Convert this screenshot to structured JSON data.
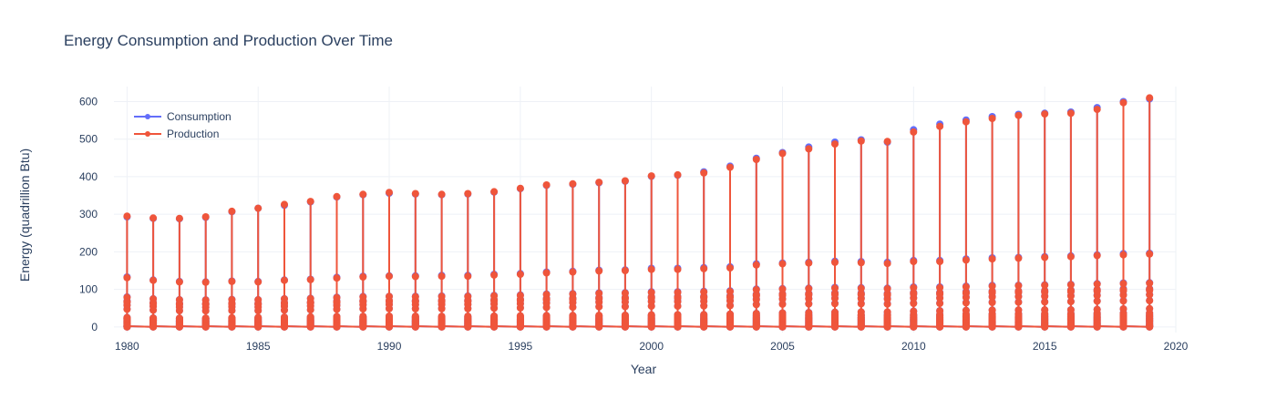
{
  "chart_data": {
    "type": "line",
    "title": "Energy Consumption and Production Over Time",
    "xlabel": "Year",
    "ylabel": "Energy (quadrillion Btu)",
    "xlim": [
      1979.5,
      2020
    ],
    "ylim": [
      -15,
      640
    ],
    "x_ticks": [
      1980,
      1985,
      1990,
      1995,
      2000,
      2005,
      2010,
      2015,
      2020
    ],
    "y_ticks": [
      0,
      100,
      200,
      300,
      400,
      500,
      600
    ],
    "mode": "lines+markers",
    "legend_position": "top-left",
    "grid": true,
    "years": [
      1980,
      1981,
      1982,
      1983,
      1984,
      1985,
      1986,
      1987,
      1988,
      1989,
      1990,
      1991,
      1992,
      1993,
      1994,
      1995,
      1996,
      1997,
      1998,
      1999,
      2000,
      2001,
      2002,
      2003,
      2004,
      2005,
      2006,
      2007,
      2008,
      2009,
      2010,
      2011,
      2012,
      2013,
      2014,
      2015,
      2016,
      2017,
      2018,
      2019
    ],
    "series": [
      {
        "name": "Consumption",
        "color": "#636efa",
        "annual_max": [
          293,
          289,
          288,
          292,
          307,
          316,
          324,
          333,
          346,
          352,
          356,
          354,
          352,
          354,
          359,
          368,
          377,
          380,
          384,
          388,
          401,
          404,
          413,
          428,
          449,
          464,
          479,
          492,
          498,
          492,
          525,
          540,
          551,
          560,
          566,
          569,
          572,
          584,
          600,
          607
        ],
        "annual_secondary": [
          133,
          125,
          121,
          120,
          122,
          121,
          125,
          127,
          132,
          135,
          136,
          136,
          137,
          137,
          140,
          142,
          146,
          148,
          151,
          152,
          156,
          156,
          158,
          160,
          168,
          170,
          172,
          175,
          174,
          172,
          177,
          177,
          181,
          184,
          185,
          187,
          189,
          192,
          195,
          196
        ]
      },
      {
        "name": "Production",
        "color": "#ef553b",
        "annual_max": [
          295,
          290,
          289,
          293,
          308,
          316,
          326,
          334,
          347,
          353,
          358,
          355,
          353,
          355,
          360,
          369,
          378,
          381,
          385,
          389,
          402,
          405,
          410,
          425,
          446,
          462,
          474,
          487,
          495,
          494,
          519,
          534,
          546,
          555,
          563,
          567,
          569,
          579,
          597,
          610
        ],
        "annual_secondary": [
          131,
          124,
          120,
          119,
          121,
          120,
          124,
          126,
          130,
          133,
          135,
          134,
          135,
          135,
          138,
          140,
          144,
          146,
          149,
          150,
          153,
          153,
          155,
          157,
          165,
          168,
          170,
          172,
          171,
          169,
          174,
          174,
          178,
          181,
          183,
          185,
          187,
          190,
          192,
          194
        ]
      }
    ]
  }
}
